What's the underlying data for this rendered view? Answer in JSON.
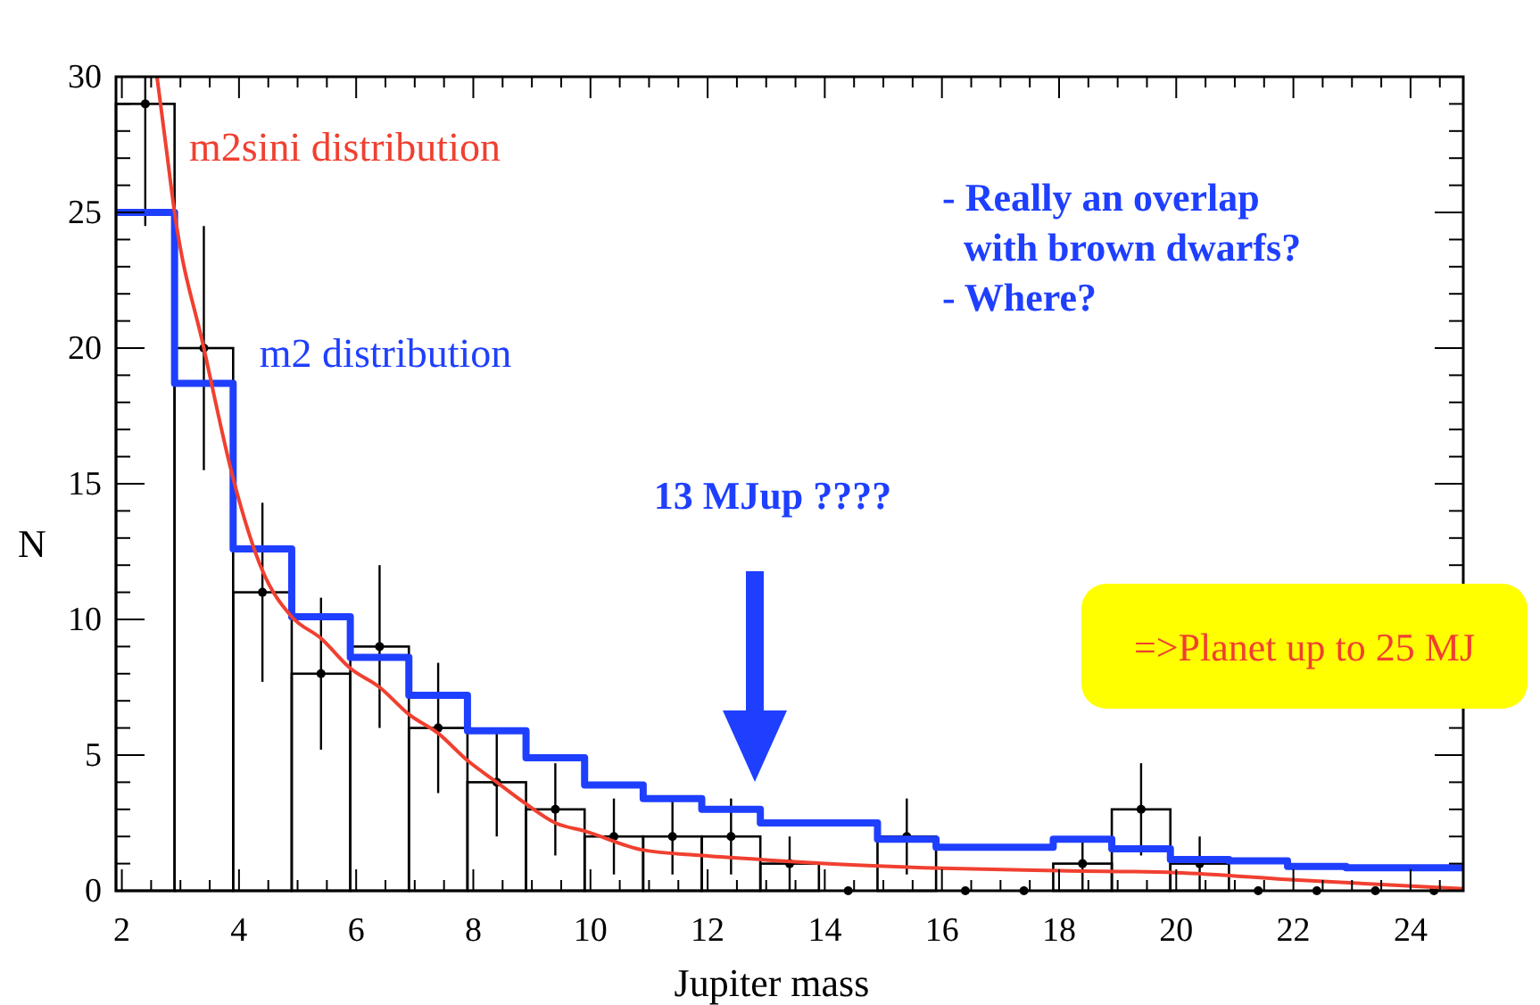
{
  "chart_data": {
    "type": "histogram",
    "xlabel": "Jupiter mass",
    "ylabel": "N",
    "bins": [
      1.9,
      2.9,
      3.9,
      4.9,
      5.9,
      6.9,
      7.9,
      8.9,
      9.9,
      10.9,
      11.9,
      12.9,
      13.9,
      14.9,
      15.9,
      16.9,
      17.9,
      18.9,
      19.9,
      20.9,
      21.9,
      22.9,
      23.9,
      24.9
    ],
    "xlim": [
      1.9,
      24.9
    ],
    "ylim": [
      0,
      30
    ],
    "xticks": [
      2,
      {
        "value": 2.5,
        "label": null
      },
      {
        "value": 3,
        "label": null
      },
      {
        "value": 3.5,
        "label": null
      },
      4,
      {
        "value": 4.5,
        "label": null
      },
      {
        "value": 5,
        "label": null
      },
      {
        "value": 5.5,
        "label": null
      },
      6,
      {
        "value": 6.5,
        "label": null
      },
      {
        "value": 7,
        "label": null
      },
      {
        "value": 7.5,
        "label": null
      },
      8,
      {
        "value": 8.5,
        "label": null
      },
      {
        "value": 9,
        "label": null
      },
      {
        "value": 9.5,
        "label": null
      },
      10,
      {
        "value": 10.5,
        "label": null
      },
      {
        "value": 11,
        "label": null
      },
      {
        "value": 11.5,
        "label": null
      },
      12,
      {
        "value": 12.5,
        "label": null
      },
      {
        "value": 13,
        "label": null
      },
      {
        "value": 13.5,
        "label": null
      },
      14,
      {
        "value": 14.5,
        "label": null
      },
      {
        "value": 15,
        "label": null
      },
      {
        "value": 15.5,
        "label": null
      },
      16,
      {
        "value": 16.5,
        "label": null
      },
      {
        "value": 17,
        "label": null
      },
      {
        "value": 17.5,
        "label": null
      },
      18,
      {
        "value": 18.5,
        "label": null
      },
      {
        "value": 19,
        "label": null
      },
      {
        "value": 19.5,
        "label": null
      },
      20,
      {
        "value": 20.5,
        "label": null
      },
      {
        "value": 21,
        "label": null
      },
      {
        "value": 21.5,
        "label": null
      },
      22,
      {
        "value": 22.5,
        "label": null
      },
      {
        "value": 23,
        "label": null
      },
      {
        "value": 23.5,
        "label": null
      },
      24,
      {
        "value": 24.5,
        "label": null
      }
    ],
    "yticks": [
      0,
      {
        "value": 1,
        "label": null
      },
      {
        "value": 2,
        "label": null
      },
      {
        "value": 3,
        "label": null
      },
      {
        "value": 4,
        "label": null
      },
      5,
      {
        "value": 6,
        "label": null
      },
      {
        "value": 7,
        "label": null
      },
      {
        "value": 8,
        "label": null
      },
      {
        "value": 9,
        "label": null
      },
      10,
      {
        "value": 11,
        "label": null
      },
      {
        "value": 12,
        "label": null
      },
      {
        "value": 13,
        "label": null
      },
      {
        "value": 14,
        "label": null
      },
      15,
      {
        "value": 16,
        "label": null
      },
      {
        "value": 17,
        "label": null
      },
      {
        "value": 18,
        "label": null
      },
      {
        "value": 19,
        "label": null
      },
      20,
      {
        "value": 21,
        "label": null
      },
      {
        "value": 22,
        "label": null
      },
      {
        "value": 23,
        "label": null
      },
      {
        "value": 24,
        "label": null
      },
      25,
      {
        "value": 26,
        "label": null
      },
      {
        "value": 27,
        "label": null
      },
      {
        "value": 28,
        "label": null
      },
      {
        "value": 29,
        "label": null
      },
      30
    ],
    "grid": false,
    "series": [
      {
        "color": "#000000",
        "values": [
          29,
          20,
          11,
          8,
          9,
          6,
          4,
          3,
          2,
          2,
          2,
          1,
          0,
          2,
          0,
          0,
          1,
          3,
          1,
          0,
          0,
          0,
          0
        ]
      },
      {
        "type": "scatter",
        "color": "#000000",
        "marker": "circle",
        "x": [
          2.4,
          3.4,
          4.4,
          5.4,
          6.4,
          7.4,
          8.4,
          9.4,
          10.4,
          11.4,
          12.4,
          13.4,
          14.4,
          15.4,
          16.4,
          17.4,
          18.4,
          19.4,
          20.4,
          21.4,
          22.4,
          23.4,
          24.4
        ],
        "values": [
          29,
          20,
          11,
          8,
          9,
          6,
          4,
          3,
          2,
          2,
          2,
          1,
          0,
          2,
          0,
          0,
          1,
          3,
          1,
          0,
          0,
          0,
          0
        ],
        "errors": [
          [
            24.5,
            30
          ],
          4.5,
          3.3,
          2.8,
          3,
          2.4,
          2,
          1.7,
          1.4,
          1.4,
          1.4,
          1,
          null,
          1.4,
          null,
          null,
          1,
          1.7,
          1,
          null,
          null,
          null,
          null
        ]
      },
      {
        "type": "step",
        "name": "m2 distribution",
        "color": "#1f3fff",
        "x": [
          1.9,
          2.9,
          3.9,
          4.9,
          5.9,
          6.9,
          7.9,
          8.9,
          9.9,
          10.9,
          11.9,
          12.9,
          13.9,
          14.9,
          15.9,
          16.9,
          17.9,
          18.9,
          19.9,
          20.9,
          21.9,
          22.9,
          23.9,
          24.9
        ],
        "values": [
          25,
          18.7,
          12.6,
          10.1,
          8.6,
          7.2,
          5.9,
          4.9,
          3.9,
          3.4,
          3,
          2.5,
          2.5,
          1.9,
          1.6,
          1.6,
          1.9,
          1.55,
          1.15,
          1.1,
          0.9,
          0.85,
          0.85,
          0.85
        ]
      },
      {
        "type": "line",
        "name": "m2sini distribution",
        "color": "#f04030",
        "x": [
          2.6,
          2.75,
          2.9,
          3.4,
          3.9,
          4.4,
          4.9,
          5.4,
          5.9,
          6.4,
          6.9,
          7.4,
          7.9,
          8.4,
          8.9,
          9.4,
          9.9,
          10.9,
          11.9,
          12.9,
          14,
          16,
          18,
          20,
          22,
          24.9
        ],
        "values": [
          30,
          27.5,
          25,
          20,
          15.2,
          11.8,
          10.1,
          9.3,
          8.2,
          7.5,
          6.5,
          5.8,
          4.8,
          4,
          3.2,
          2.5,
          2.2,
          1.5,
          1.3,
          1.15,
          1,
          0.83,
          0.74,
          0.67,
          0.4,
          0.07
        ]
      }
    ],
    "annotations": [
      "- Really an overlap\n  with brown dwarfs?\n- Where?",
      "13 MJup ????",
      "=>Planet up to 25 MJ"
    ]
  }
}
